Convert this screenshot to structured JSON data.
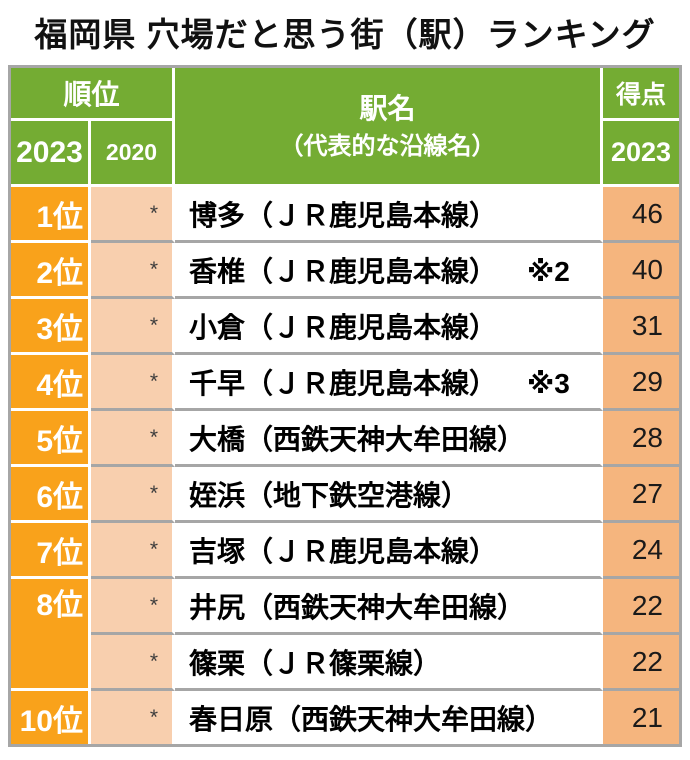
{
  "title": "福岡県 穴場だと思う街（駅）ランキング",
  "colors": {
    "header_green": "#74AC33",
    "rank_orange": "#F9A21B",
    "prev_rank_peach": "#F8CFAE",
    "score_peach": "#F5B57E",
    "grid_gray": "#A6A6A6",
    "header_text": "#ffffff"
  },
  "table": {
    "header": {
      "rank_group": "順位",
      "rank_year_2023": "2023",
      "rank_year_2020": "2020",
      "station_title": "駅名",
      "station_subtitle": "（代表的な沿線名）",
      "score_title": "得点",
      "score_year": "2023"
    },
    "rows": [
      {
        "rank": "1位",
        "rank_rowspan": 1,
        "prev": "*",
        "station": "博多（ＪＲ鹿児島本線）",
        "note": "",
        "score": "46"
      },
      {
        "rank": "2位",
        "rank_rowspan": 1,
        "prev": "*",
        "station": "香椎（ＪＲ鹿児島本線）",
        "note": "※2",
        "score": "40"
      },
      {
        "rank": "3位",
        "rank_rowspan": 1,
        "prev": "*",
        "station": "小倉（ＪＲ鹿児島本線）",
        "note": "",
        "score": "31"
      },
      {
        "rank": "4位",
        "rank_rowspan": 1,
        "prev": "*",
        "station": "千早（ＪＲ鹿児島本線）",
        "note": "※3",
        "score": "29"
      },
      {
        "rank": "5位",
        "rank_rowspan": 1,
        "prev": "*",
        "station": "大橋（西鉄天神大牟田線）",
        "note": "",
        "score": "28"
      },
      {
        "rank": "6位",
        "rank_rowspan": 1,
        "prev": "*",
        "station": "姪浜（地下鉄空港線）",
        "note": "",
        "score": "27"
      },
      {
        "rank": "7位",
        "rank_rowspan": 1,
        "prev": "*",
        "station": "吉塚（ＪＲ鹿児島本線）",
        "note": "",
        "score": "24"
      },
      {
        "rank": "8位",
        "rank_rowspan": 2,
        "prev": "*",
        "station": "井尻（西鉄天神大牟田線）",
        "note": "",
        "score": "22"
      },
      {
        "rank": null,
        "rank_rowspan": 0,
        "prev": "*",
        "station": "篠栗（ＪＲ篠栗線）",
        "note": "",
        "score": "22"
      },
      {
        "rank": "10位",
        "rank_rowspan": 1,
        "prev": "*",
        "station": "春日原（西鉄天神大牟田線）",
        "note": "",
        "score": "21"
      }
    ]
  },
  "chart_data": {
    "type": "table",
    "title": "福岡県 穴場だと思う街（駅）ランキング",
    "columns": [
      "順位 2023",
      "順位 2020",
      "駅名（代表的な沿線名）",
      "得点 2023"
    ],
    "rows": [
      [
        "1位",
        "*",
        "博多（ＪＲ鹿児島本線）",
        46
      ],
      [
        "2位",
        "*",
        "香椎（ＪＲ鹿児島本線）※2",
        40
      ],
      [
        "3位",
        "*",
        "小倉（ＪＲ鹿児島本線）",
        31
      ],
      [
        "4位",
        "*",
        "千早（ＪＲ鹿児島本線）※3",
        29
      ],
      [
        "5位",
        "*",
        "大橋（西鉄天神大牟田線）",
        28
      ],
      [
        "6位",
        "*",
        "姪浜（地下鉄空港線）",
        27
      ],
      [
        "7位",
        "*",
        "吉塚（ＪＲ鹿児島本線）",
        24
      ],
      [
        "8位",
        "*",
        "井尻（西鉄天神大牟田線）",
        22
      ],
      [
        "8位",
        "*",
        "篠栗（ＪＲ篠栗線）",
        22
      ],
      [
        "10位",
        "*",
        "春日原（西鉄天神大牟田線）",
        21
      ]
    ]
  }
}
